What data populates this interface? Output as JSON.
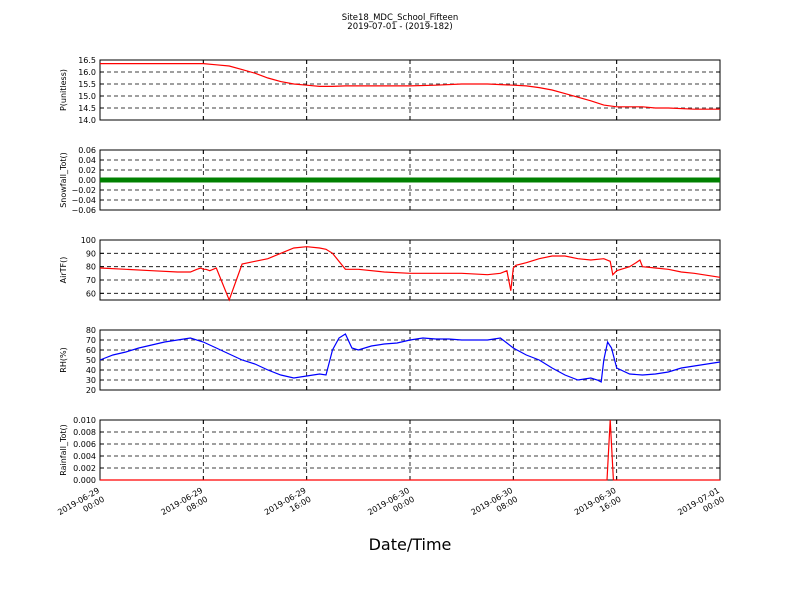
{
  "figure": {
    "title": "Site18_MDC_School_Fifteen",
    "subtitle": "2019-07-01 - (2019-182)",
    "xlabel": "Date/Time"
  },
  "chart_data": [
    {
      "type": "line",
      "ylabel": "P(unitless)",
      "ylim": [
        14.0,
        16.5
      ],
      "yticks": [
        "14.0",
        "14.5",
        "15.0",
        "15.5",
        "16.0",
        "16.5"
      ],
      "xlim": [
        0,
        48
      ],
      "xticks": [
        "2019-06-29 00:00",
        "2019-06-29 08:00",
        "2019-06-29 16:00",
        "2019-06-30 00:00",
        "2019-06-30 08:00",
        "2019-06-30 16:00",
        "2019-07-01 00:00"
      ],
      "grid": true,
      "color": "#ff0000",
      "x": [
        0,
        2,
        4,
        6,
        8,
        9,
        10,
        11,
        12,
        13,
        14,
        15,
        16,
        17,
        18,
        19,
        20,
        22,
        24,
        26,
        28,
        30,
        32,
        33,
        34,
        35,
        36,
        37,
        38,
        39,
        40,
        41,
        42,
        43,
        44,
        46,
        48
      ],
      "y": [
        16.35,
        16.35,
        16.35,
        16.35,
        16.35,
        16.3,
        16.25,
        16.1,
        15.95,
        15.75,
        15.6,
        15.5,
        15.45,
        15.4,
        15.4,
        15.42,
        15.42,
        15.42,
        15.42,
        15.45,
        15.5,
        15.5,
        15.45,
        15.42,
        15.35,
        15.25,
        15.1,
        14.95,
        14.8,
        14.62,
        14.55,
        14.55,
        14.55,
        14.5,
        14.5,
        14.45,
        14.45
      ]
    },
    {
      "type": "scatter",
      "ylabel": "Snowfall_Tot()",
      "ylim": [
        -0.06,
        0.06
      ],
      "yticks": [
        "−0.06",
        "−0.04",
        "−0.02",
        "0.00",
        "0.02",
        "0.04",
        "0.06"
      ],
      "xlim": [
        0,
        48
      ],
      "grid": true,
      "color": "#008000",
      "constant": 0.0,
      "x": [
        0,
        48
      ]
    },
    {
      "type": "line",
      "ylabel": "AirTF()",
      "ylim": [
        55,
        100
      ],
      "yticks": [
        "60",
        "70",
        "80",
        "90",
        "100"
      ],
      "xlim": [
        0,
        48
      ],
      "grid": true,
      "color": "#ff0000",
      "x": [
        0,
        2,
        4,
        6,
        7,
        7.5,
        7.8,
        8,
        8.2,
        8.5,
        9,
        10,
        11,
        12,
        13,
        14,
        15,
        16,
        17,
        17.5,
        18,
        19,
        20,
        22,
        24,
        26,
        28,
        30,
        31,
        31.5,
        31.8,
        32,
        32.2,
        33,
        34,
        35,
        36,
        37,
        38,
        39,
        39.5,
        39.7,
        40,
        41,
        41.5,
        41.8,
        42,
        43,
        44,
        45,
        46,
        48
      ],
      "y": [
        79,
        78,
        77,
        76,
        76,
        78,
        79,
        78,
        78,
        77,
        79,
        55,
        82,
        84,
        86,
        90,
        94,
        95,
        94,
        93,
        90,
        78,
        78,
        76,
        75,
        75,
        75,
        74,
        75,
        77,
        62,
        79,
        81,
        83,
        86,
        88,
        88,
        86,
        85,
        86,
        84,
        74,
        77,
        80,
        83,
        85,
        80,
        79,
        78,
        76,
        75,
        72
      ]
    },
    {
      "type": "line",
      "ylabel": "RH(%)",
      "ylim": [
        20,
        80
      ],
      "yticks": [
        "20",
        "30",
        "40",
        "50",
        "60",
        "70",
        "80"
      ],
      "xlim": [
        0,
        48
      ],
      "grid": true,
      "color": "#0000ff",
      "x": [
        0,
        1,
        2,
        3,
        4,
        5,
        6,
        7,
        8,
        9,
        10,
        11,
        12,
        13,
        14,
        15,
        16,
        17,
        17.5,
        18,
        18.5,
        19,
        19.5,
        20,
        21,
        22,
        23,
        24,
        25,
        26,
        27,
        28,
        29,
        30,
        31,
        32,
        33,
        34,
        35,
        36,
        37,
        38,
        38.5,
        38.8,
        39,
        39.3,
        39.6,
        40,
        41,
        42,
        43,
        44,
        45,
        46,
        47,
        48
      ],
      "y": [
        50,
        55,
        58,
        62,
        65,
        68,
        70,
        72,
        68,
        62,
        56,
        50,
        46,
        40,
        35,
        32,
        34,
        36,
        35,
        60,
        72,
        76,
        62,
        60,
        64,
        66,
        67,
        70,
        72,
        71,
        71,
        70,
        70,
        70,
        72,
        62,
        55,
        50,
        42,
        35,
        30,
        32,
        30,
        28,
        50,
        68,
        62,
        42,
        36,
        35,
        36,
        38,
        42,
        44,
        46,
        48
      ]
    },
    {
      "type": "line",
      "ylabel": "Rainfall_Tot()",
      "ylim": [
        0.0,
        0.01
      ],
      "yticks": [
        "0.000",
        "0.002",
        "0.004",
        "0.006",
        "0.008",
        "0.010"
      ],
      "xlim": [
        0,
        48
      ],
      "grid": true,
      "color": "#ff0000",
      "x": [
        0,
        39.2,
        39.25,
        39.5,
        39.75,
        39.8,
        48
      ],
      "y": [
        0,
        0,
        0,
        0.01,
        0,
        0,
        0
      ]
    }
  ]
}
